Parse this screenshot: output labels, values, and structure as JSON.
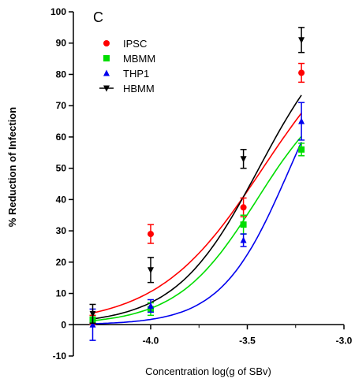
{
  "chart_data": {
    "type": "scatter",
    "panel_label": "C",
    "xlabel": "Concentration log(g of SBv)",
    "ylabel": "% Reduction of Infection",
    "xlim": [
      -4.4,
      -3.0
    ],
    "ylim": [
      -10,
      100
    ],
    "x_ticks": [
      -4.0,
      -3.5,
      -3.0
    ],
    "x_tick_labels": [
      "-4.0",
      "-3.5",
      "-3.0"
    ],
    "y_ticks": [
      -10,
      0,
      10,
      20,
      30,
      40,
      50,
      60,
      70,
      80,
      90,
      100
    ],
    "y_tick_labels": [
      "-10",
      "0",
      "10",
      "20",
      "30",
      "40",
      "50",
      "60",
      "70",
      "80",
      "90",
      "100"
    ],
    "legend_position": "top-left",
    "series": [
      {
        "name": "IPSC",
        "color": "#ff0000",
        "marker": "circle",
        "points": [
          {
            "x": -4.3,
            "y": 1.5,
            "err": 1.5
          },
          {
            "x": -4.0,
            "y": 29,
            "err": 3
          },
          {
            "x": -3.52,
            "y": 37.5,
            "err": 3
          },
          {
            "x": -3.22,
            "y": 80.5,
            "err": 3
          }
        ],
        "fit": {
          "bottom": 0,
          "top": 100,
          "logEC50": -3.42,
          "hill": 1.6
        }
      },
      {
        "name": "MBMM",
        "color": "#00dd00",
        "marker": "square",
        "points": [
          {
            "x": -4.3,
            "y": 1.5,
            "err": 1
          },
          {
            "x": -4.0,
            "y": 5,
            "err": 2
          },
          {
            "x": -3.52,
            "y": 32,
            "err": 3
          },
          {
            "x": -3.22,
            "y": 56,
            "err": 2
          }
        ],
        "fit": {
          "bottom": 0,
          "top": 80,
          "logEC50": -3.45,
          "hill": 2.1
        }
      },
      {
        "name": "THP1",
        "color": "#0000ee",
        "marker": "triangle-up",
        "points": [
          {
            "x": -4.3,
            "y": 0,
            "err": 5
          },
          {
            "x": -4.0,
            "y": 6,
            "err": 2
          },
          {
            "x": -3.52,
            "y": 27,
            "err": 2
          },
          {
            "x": -3.22,
            "y": 65,
            "err": 6
          }
        ],
        "fit": {
          "bottom": 0,
          "top": 100,
          "logEC50": -3.28,
          "hill": 2.45
        }
      },
      {
        "name": "HBMM",
        "color": "#000000",
        "marker": "triangle-down",
        "points": [
          {
            "x": -4.3,
            "y": 3.5,
            "err": 3
          },
          {
            "x": -4.0,
            "y": 17.5,
            "err": 4
          },
          {
            "x": -3.52,
            "y": 53,
            "err": 3
          },
          {
            "x": -3.22,
            "y": 91,
            "err": 4
          }
        ],
        "fit": {
          "bottom": 0,
          "top": 100,
          "logEC50": -3.44,
          "hill": 2.0
        }
      }
    ]
  }
}
